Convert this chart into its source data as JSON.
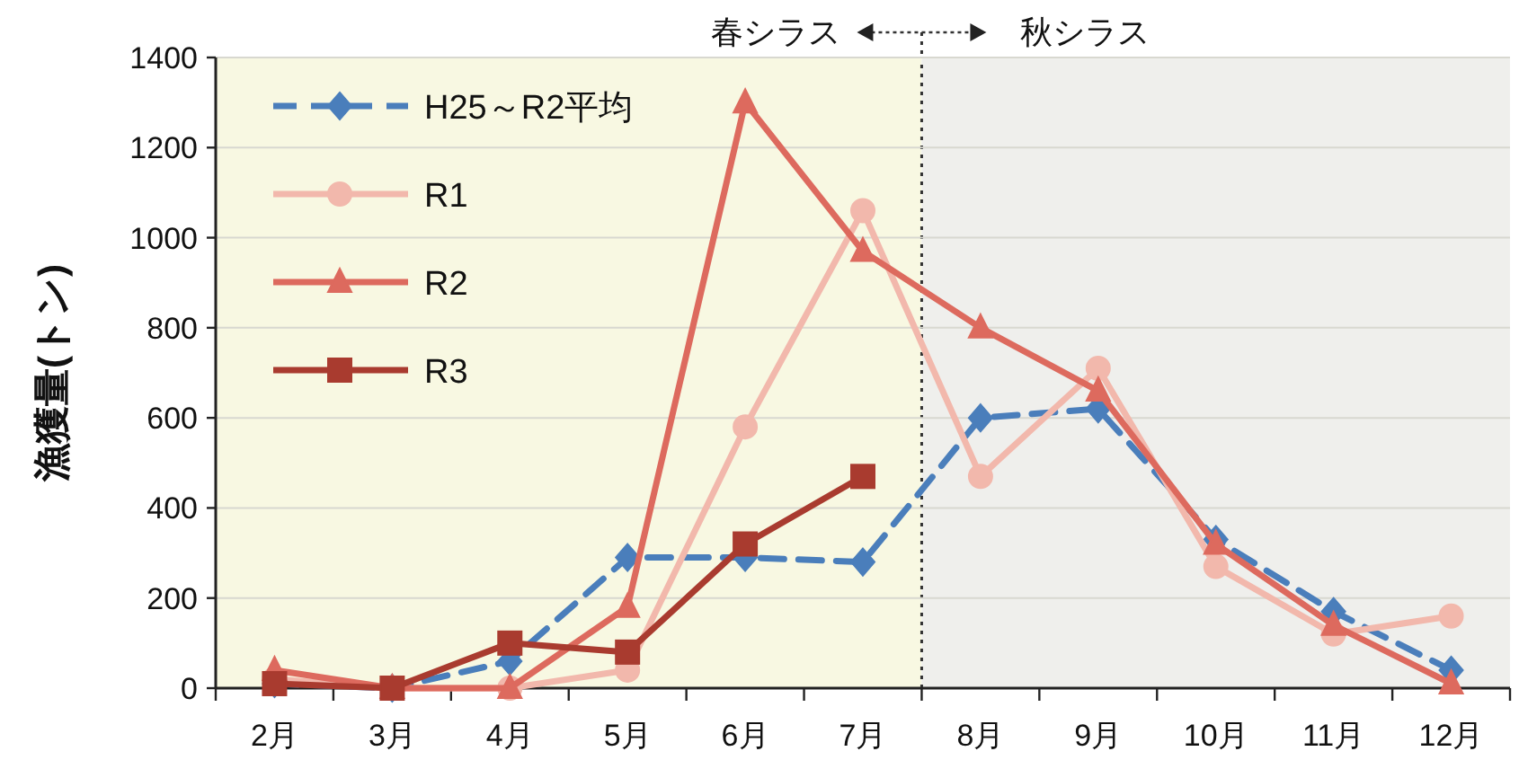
{
  "chart_data": {
    "type": "line",
    "ylabel": "漁獲量(トン)",
    "categories": [
      "2月",
      "3月",
      "4月",
      "5月",
      "6月",
      "7月",
      "8月",
      "9月",
      "10月",
      "11月",
      "12月"
    ],
    "ylim": [
      0,
      1400
    ],
    "yticks": [
      0,
      200,
      400,
      600,
      800,
      1000,
      1200,
      1400
    ],
    "grid": "y",
    "legend": "top left",
    "series": [
      {
        "name": "H25～R2平均",
        "color": "#4a7ebb",
        "marker": "diamond",
        "line_style": "dashed",
        "values": [
          10,
          0,
          60,
          290,
          290,
          280,
          600,
          620,
          330,
          170,
          40
        ]
      },
      {
        "name": "R1",
        "color": "#f2b8ac",
        "marker": "circle",
        "line_style": "solid",
        "values": [
          20,
          0,
          0,
          40,
          580,
          1060,
          470,
          710,
          270,
          120,
          160
        ]
      },
      {
        "name": "R2",
        "color": "#dd6a5e",
        "marker": "triangle",
        "line_style": "solid",
        "values": [
          40,
          0,
          0,
          180,
          1300,
          970,
          800,
          660,
          320,
          140,
          10
        ]
      },
      {
        "name": "R3",
        "color": "#a93b2f",
        "marker": "square",
        "line_style": "solid",
        "values": [
          10,
          0,
          100,
          80,
          320,
          470,
          null,
          null,
          null,
          null,
          null
        ]
      }
    ],
    "bands": [
      {
        "axis": "x",
        "from": "2月",
        "to": "7月",
        "label": "春シラス",
        "color": "#f8f8e2"
      },
      {
        "axis": "x",
        "from": "8月",
        "to": "12月",
        "label": "秋シラス",
        "color": "#efefec"
      }
    ]
  }
}
